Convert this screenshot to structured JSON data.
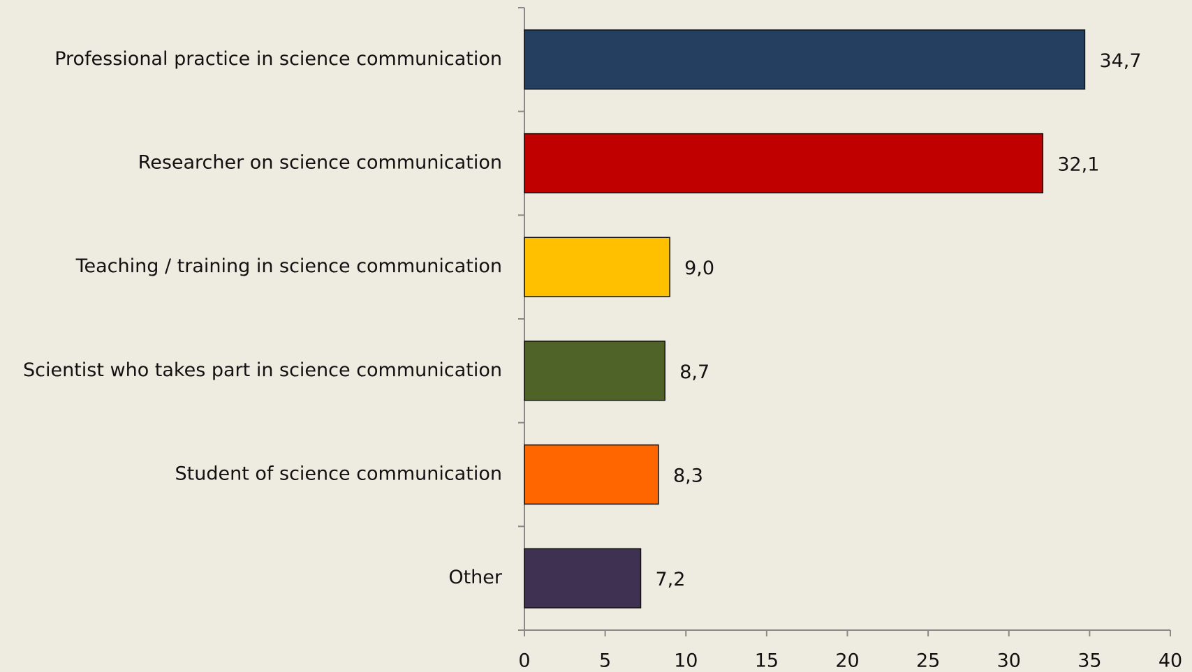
{
  "chart_data": {
    "type": "bar",
    "orientation": "horizontal",
    "categories": [
      "Professional practice in science communication",
      "Researcher on science communication",
      "Teaching / training in science communication",
      "Scientist who takes part in science communication",
      "Student of science communication",
      "Other"
    ],
    "values": [
      34.7,
      32.1,
      9.0,
      8.7,
      8.3,
      7.2
    ],
    "value_labels": [
      "34,7",
      "32,1",
      "9,0",
      "8,7",
      "8,3",
      "7,2"
    ],
    "colors": [
      "#243f60",
      "#c00000",
      "#ffc000",
      "#4f6228",
      "#ff6600",
      "#3f3151"
    ],
    "xlim": [
      0,
      40
    ],
    "xticks": [
      0,
      5,
      10,
      15,
      20,
      25,
      30,
      35,
      40
    ],
    "grid": false
  }
}
